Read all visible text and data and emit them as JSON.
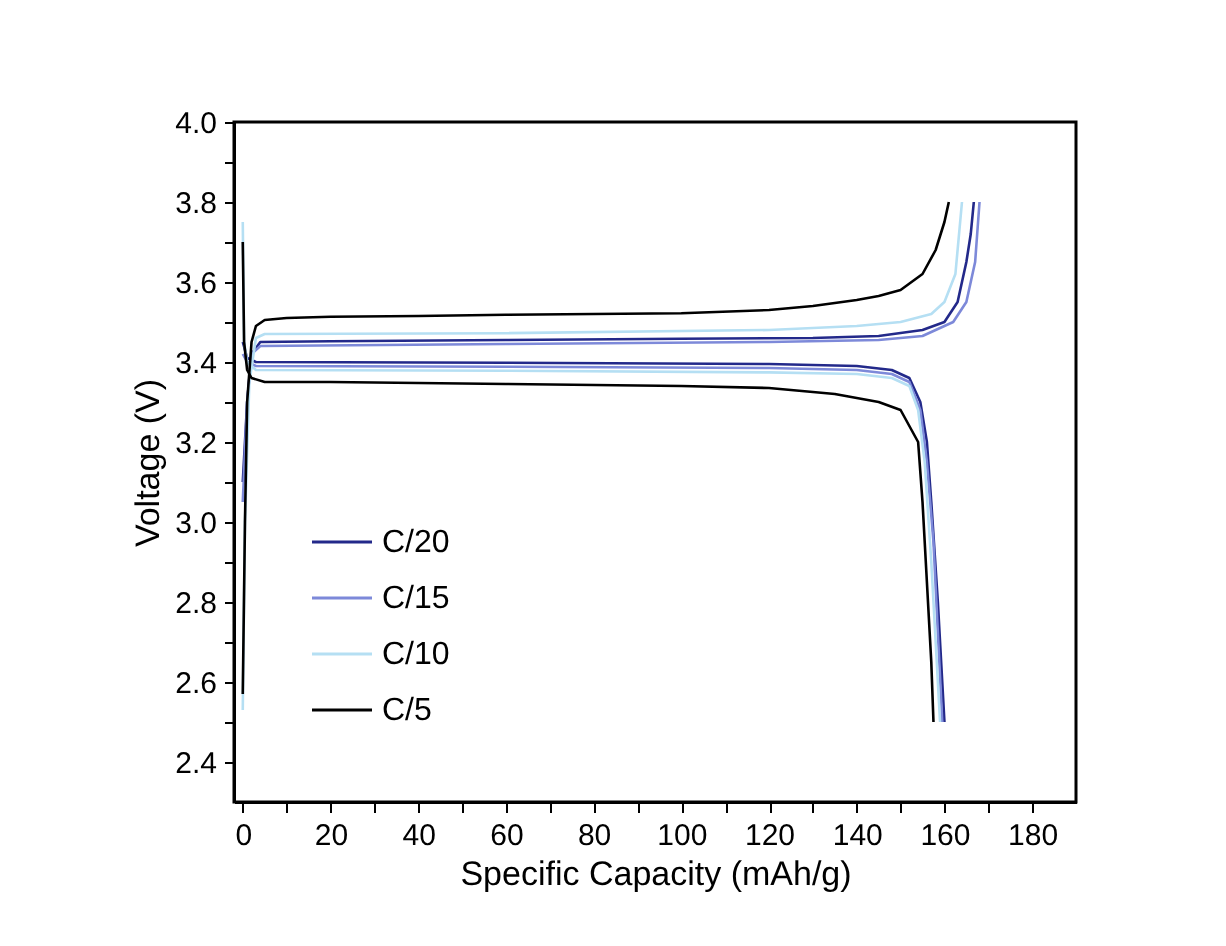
{
  "chart_data": {
    "type": "line",
    "xlabel": "Specific Capacity (mAh/g)",
    "ylabel": "Voltage (V)",
    "xlim": [
      -2,
      190
    ],
    "ylim": [
      2.3,
      4.0
    ],
    "xticks": [
      0,
      {
        "value": 10,
        "label": null
      },
      20,
      {
        "value": 30,
        "label": null
      },
      40,
      {
        "value": 50,
        "label": null
      },
      60,
      {
        "value": 70,
        "label": null
      },
      80,
      {
        "value": 90,
        "label": null
      },
      100,
      {
        "value": 110,
        "label": null
      },
      120,
      {
        "value": 130,
        "label": null
      },
      140,
      {
        "value": 150,
        "label": null
      },
      160,
      {
        "value": 170,
        "label": null
      },
      180
    ],
    "yticks": [
      {
        "value": 2.4,
        "label": "2.4"
      },
      {
        "value": 2.5,
        "label": null
      },
      {
        "value": 2.6,
        "label": "2.6"
      },
      {
        "value": 2.7,
        "label": null
      },
      {
        "value": 2.8,
        "label": "2.8"
      },
      {
        "value": 2.9,
        "label": null
      },
      {
        "value": 3.0,
        "label": "3.0"
      },
      {
        "value": 3.1,
        "label": null
      },
      {
        "value": 3.2,
        "label": "3.2"
      },
      {
        "value": 3.3,
        "label": null
      },
      {
        "value": 3.4,
        "label": "3.4"
      },
      {
        "value": 3.5,
        "label": null
      },
      {
        "value": 3.6,
        "label": "3.6"
      },
      {
        "value": 3.7,
        "label": null
      },
      {
        "value": 3.8,
        "label": "3.8"
      },
      {
        "value": 3.9,
        "label": null
      },
      {
        "value": 4.0,
        "label": "4.0"
      }
    ],
    "grid": false,
    "legend": "bottom left",
    "marker": "none",
    "line_style": "solid",
    "series": [
      {
        "name": "C/20",
        "color": "#23298a",
        "x": [
          0,
          1,
          2,
          4,
          20,
          60,
          100,
          130,
          145,
          155,
          160,
          163,
          165,
          166,
          166.7
        ],
        "values": [
          3.1,
          3.3,
          3.42,
          3.45,
          3.452,
          3.455,
          3.458,
          3.46,
          3.465,
          3.48,
          3.5,
          3.55,
          3.65,
          3.72,
          3.8
        ]
      },
      {
        "color": "#23298a",
        "x": [
          0,
          1,
          3,
          60,
          120,
          140,
          148,
          152,
          154.5,
          156,
          157,
          158.5,
          160
        ],
        "values": [
          3.45,
          3.41,
          3.4,
          3.398,
          3.395,
          3.39,
          3.38,
          3.36,
          3.3,
          3.2,
          3.05,
          2.8,
          2.5
        ]
      },
      {
        "name": "C/15",
        "color": "#7d89d9",
        "x": [
          0,
          1,
          2,
          4,
          60,
          120,
          145,
          155,
          162,
          165,
          167,
          168
        ],
        "values": [
          3.05,
          3.3,
          3.42,
          3.44,
          3.445,
          3.45,
          3.455,
          3.465,
          3.5,
          3.55,
          3.65,
          3.8
        ]
      },
      {
        "color": "#7d89d9",
        "x": [
          0,
          1,
          3,
          60,
          120,
          140,
          148,
          152,
          154.5,
          156,
          157.5,
          159.5
        ],
        "values": [
          3.42,
          3.4,
          3.39,
          3.388,
          3.385,
          3.38,
          3.37,
          3.35,
          3.28,
          3.15,
          2.95,
          2.5
        ]
      },
      {
        "name": "C/10",
        "color": "#b5dff3",
        "x": [
          0,
          0.5,
          1.5,
          3,
          5,
          60,
          120,
          140,
          150,
          157,
          160,
          162.5,
          164
        ],
        "values": [
          2.53,
          3.0,
          3.35,
          3.46,
          3.47,
          3.472,
          3.48,
          3.49,
          3.5,
          3.52,
          3.55,
          3.62,
          3.8
        ]
      },
      {
        "color": "#b5dff3",
        "x": [
          0,
          0.3,
          1,
          3,
          60,
          120,
          140,
          148,
          152,
          154,
          155.5,
          157,
          159
        ],
        "values": [
          3.75,
          3.45,
          3.4,
          3.38,
          3.378,
          3.374,
          3.37,
          3.36,
          3.34,
          3.28,
          3.15,
          2.9,
          2.5
        ]
      },
      {
        "name": "C/5",
        "color": "#000000",
        "x": [
          0,
          0.5,
          1,
          2,
          3,
          5,
          10,
          20,
          40,
          60,
          80,
          100,
          120,
          130,
          140,
          145,
          150,
          155,
          158,
          160,
          161
        ],
        "values": [
          2.57,
          3.0,
          3.3,
          3.45,
          3.49,
          3.505,
          3.51,
          3.513,
          3.515,
          3.518,
          3.52,
          3.522,
          3.53,
          3.54,
          3.555,
          3.565,
          3.58,
          3.62,
          3.68,
          3.75,
          3.8
        ]
      },
      {
        "color": "#000000",
        "x": [
          0,
          0.3,
          1,
          2,
          5,
          20,
          60,
          100,
          120,
          135,
          145,
          150,
          154,
          155,
          156,
          157,
          157.5
        ],
        "values": [
          3.7,
          3.45,
          3.38,
          3.36,
          3.35,
          3.35,
          3.345,
          3.34,
          3.335,
          3.32,
          3.3,
          3.28,
          3.2,
          3.05,
          2.85,
          2.65,
          2.5
        ]
      }
    ]
  }
}
